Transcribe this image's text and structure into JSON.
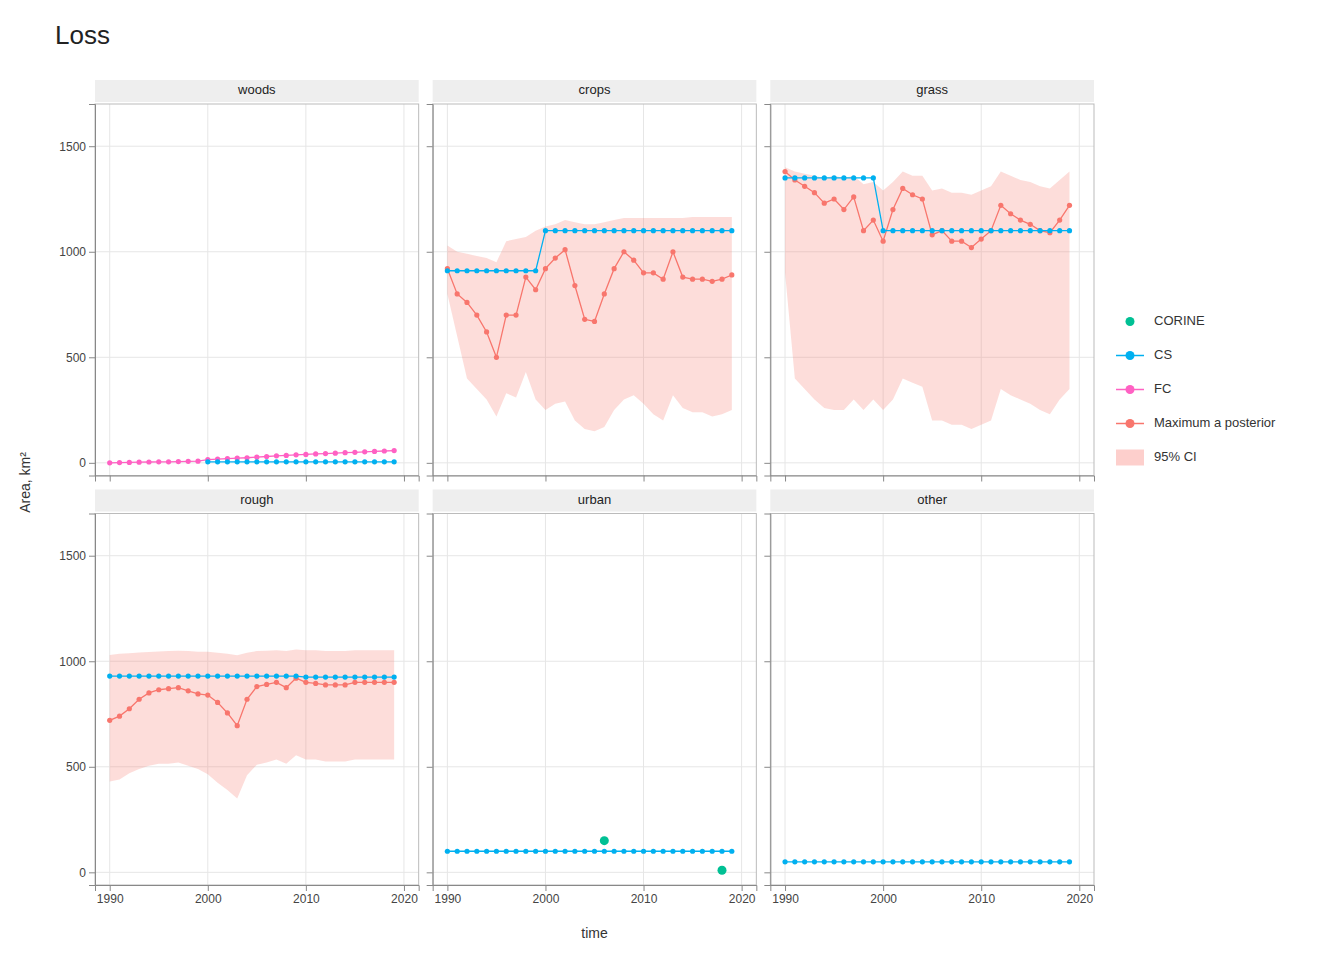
{
  "chart_data": {
    "type": "line",
    "title": "Loss",
    "x_label": "time",
    "y_label": "Area, km²",
    "xlim": [
      1988.5,
      2021.5
    ],
    "ylim": [
      -60,
      1700
    ],
    "xticks": [
      1990,
      2000,
      2010,
      2020
    ],
    "yticks": [
      0,
      500,
      1000,
      1500
    ],
    "grid": true,
    "legend": "right",
    "x": [
      1990,
      1991,
      1992,
      1993,
      1994,
      1995,
      1996,
      1997,
      1998,
      1999,
      2000,
      2001,
      2002,
      2003,
      2004,
      2005,
      2006,
      2007,
      2008,
      2009,
      2010,
      2011,
      2012,
      2013,
      2014,
      2015,
      2016,
      2017,
      2018,
      2019
    ],
    "series": [
      {
        "name": "CORINE",
        "type": "scatter",
        "marker": "circle",
        "color": "#00C094"
      },
      {
        "name": "CS",
        "type": "line",
        "marker": "circle",
        "color": "#00B0F0"
      },
      {
        "name": "FC",
        "type": "line",
        "marker": "circle",
        "color": "#FF61C3"
      },
      {
        "name": "Maximum a posterior",
        "type": "line",
        "marker": "circle",
        "color": "#F8766D"
      },
      {
        "name": "95% CI",
        "type": "area",
        "color": "#F8766D"
      }
    ],
    "panels": [
      {
        "title": "woods",
        "series": [
          {
            "name": "FC",
            "values": [
              0,
              1,
              2,
              3,
              4,
              5,
              5,
              6,
              7,
              8,
              15,
              18,
              20,
              22,
              24,
              27,
              30,
              33,
              35,
              38,
              40,
              42,
              44,
              46,
              48,
              50,
              52,
              54,
              56,
              58
            ]
          },
          {
            "name": "CS",
            "x": [
              2000,
              2001,
              2002,
              2003,
              2004,
              2005,
              2006,
              2007,
              2008,
              2009,
              2010,
              2011,
              2012,
              2013,
              2014,
              2015,
              2016,
              2017,
              2018,
              2019
            ],
            "values": [
              5,
              5,
              5,
              5,
              5,
              5,
              5,
              5,
              5,
              5,
              5,
              5,
              5,
              5,
              5,
              5,
              5,
              5,
              5,
              5
            ]
          }
        ]
      },
      {
        "title": "crops",
        "series": [
          {
            "name": "95% CI",
            "low": [
              800,
              600,
              400,
              350,
              300,
              220,
              330,
              310,
              430,
              300,
              250,
              280,
              290,
              200,
              160,
              150,
              170,
              250,
              300,
              320,
              280,
              230,
              200,
              320,
              260,
              240,
              240,
              220,
              230,
              250
            ],
            "high": [
              1030,
              1000,
              990,
              980,
              970,
              950,
              1050,
              1060,
              1070,
              1100,
              1120,
              1130,
              1150,
              1140,
              1130,
              1130,
              1140,
              1150,
              1160,
              1160,
              1160,
              1160,
              1160,
              1160,
              1160,
              1165,
              1165,
              1165,
              1165,
              1165
            ]
          },
          {
            "name": "Maximum a posterior",
            "values": [
              920,
              800,
              760,
              700,
              620,
              500,
              700,
              700,
              880,
              820,
              920,
              970,
              1010,
              840,
              680,
              670,
              800,
              920,
              1000,
              960,
              900,
              900,
              870,
              1000,
              880,
              870,
              870,
              860,
              870,
              890
            ]
          },
          {
            "name": "CS",
            "values": [
              910,
              910,
              910,
              910,
              910,
              910,
              910,
              910,
              910,
              910,
              1100,
              1100,
              1100,
              1100,
              1100,
              1100,
              1100,
              1100,
              1100,
              1100,
              1100,
              1100,
              1100,
              1100,
              1100,
              1100,
              1100,
              1100,
              1100,
              1100
            ]
          }
        ]
      },
      {
        "title": "grass",
        "series": [
          {
            "name": "95% CI",
            "low": [
              900,
              400,
              350,
              300,
              260,
              250,
              250,
              300,
              250,
              300,
              250,
              300,
              400,
              380,
              360,
              200,
              200,
              180,
              180,
              160,
              180,
              200,
              350,
              320,
              300,
              280,
              250,
              230,
              300,
              350
            ],
            "high": [
              1400,
              1380,
              1370,
              1360,
              1350,
              1360,
              1350,
              1360,
              1320,
              1330,
              1290,
              1330,
              1380,
              1360,
              1360,
              1290,
              1300,
              1280,
              1280,
              1270,
              1290,
              1310,
              1380,
              1360,
              1340,
              1330,
              1310,
              1300,
              1340,
              1380
            ]
          },
          {
            "name": "Maximum a posterior",
            "values": [
              1380,
              1340,
              1310,
              1280,
              1230,
              1250,
              1200,
              1260,
              1100,
              1150,
              1050,
              1200,
              1300,
              1270,
              1250,
              1080,
              1100,
              1050,
              1050,
              1020,
              1060,
              1100,
              1220,
              1180,
              1150,
              1130,
              1100,
              1090,
              1150,
              1220
            ]
          },
          {
            "name": "CS",
            "values": [
              1350,
              1350,
              1350,
              1350,
              1350,
              1350,
              1350,
              1350,
              1350,
              1350,
              1100,
              1100,
              1100,
              1100,
              1100,
              1100,
              1100,
              1100,
              1100,
              1100,
              1100,
              1100,
              1100,
              1100,
              1100,
              1100,
              1100,
              1100,
              1100,
              1100
            ]
          }
        ]
      },
      {
        "title": "rough",
        "series": [
          {
            "name": "95% CI",
            "low": [
              430,
              440,
              470,
              490,
              505,
              515,
              515,
              520,
              505,
              490,
              465,
              425,
              390,
              350,
              460,
              510,
              520,
              535,
              515,
              555,
              535,
              535,
              525,
              525,
              525,
              535,
              535,
              535,
              535,
              535
            ],
            "high": [
              1030,
              1035,
              1038,
              1042,
              1044,
              1046,
              1048,
              1050,
              1048,
              1045,
              1045,
              1040,
              1035,
              1028,
              1040,
              1048,
              1050,
              1052,
              1048,
              1056,
              1052,
              1052,
              1048,
              1048,
              1048,
              1052,
              1052,
              1052,
              1052,
              1052
            ]
          },
          {
            "name": "Maximum a posterior",
            "values": [
              720,
              740,
              775,
              820,
              850,
              865,
              870,
              875,
              860,
              845,
              840,
              805,
              755,
              695,
              820,
              880,
              890,
              900,
              875,
              920,
              900,
              895,
              888,
              888,
              888,
              900,
              900,
              900,
              900,
              900
            ]
          },
          {
            "name": "CS",
            "values": [
              930,
              930,
              930,
              930,
              930,
              930,
              930,
              930,
              930,
              930,
              930,
              930,
              930,
              930,
              930,
              930,
              930,
              930,
              930,
              930,
              925,
              925,
              925,
              925,
              925,
              925,
              925,
              925,
              925,
              925
            ]
          }
        ]
      },
      {
        "title": "urban",
        "series": [
          {
            "name": "CS",
            "values": [
              100,
              100,
              100,
              100,
              100,
              100,
              100,
              100,
              100,
              100,
              100,
              100,
              100,
              100,
              100,
              100,
              100,
              100,
              100,
              100,
              100,
              100,
              100,
              100,
              100,
              100,
              100,
              100,
              100,
              100
            ]
          },
          {
            "name": "CORINE",
            "x": [
              2006,
              2018
            ],
            "values": [
              150,
              10
            ]
          }
        ]
      },
      {
        "title": "other",
        "series": [
          {
            "name": "CS",
            "values": [
              50,
              50,
              50,
              50,
              50,
              50,
              50,
              50,
              50,
              50,
              50,
              50,
              50,
              50,
              50,
              50,
              50,
              50,
              50,
              50,
              50,
              50,
              50,
              50,
              50,
              50,
              50,
              50,
              50,
              50
            ]
          }
        ]
      }
    ]
  }
}
